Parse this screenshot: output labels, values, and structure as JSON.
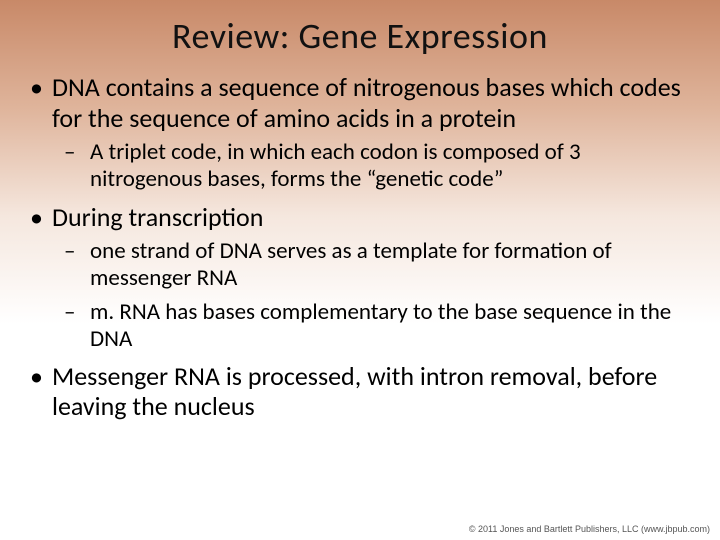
{
  "background": {
    "gradient_stops": [
      "#c88968",
      "#dfb49b",
      "#f5e7de",
      "#ffffff"
    ],
    "gradient_direction": "top-to-bottom"
  },
  "title": {
    "text": "Review:  Gene Expression",
    "fontsize": 36,
    "color": "#111111",
    "align": "center"
  },
  "bullets": [
    {
      "text": "DNA contains a sequence of nitrogenous bases which codes for the sequence of amino acids in a protein",
      "fontsize": 26,
      "sub": [
        {
          "text": "A triplet code, in which each codon is composed of 3 nitrogenous bases, forms the “genetic code”",
          "fontsize": 23
        }
      ]
    },
    {
      "text": "During transcription",
      "fontsize": 26,
      "sub": [
        {
          "text": "one strand of DNA serves as a template for formation of messenger RNA",
          "fontsize": 23
        },
        {
          "text": "m. RNA has bases complementary to the base sequence in the DNA",
          "fontsize": 23
        }
      ]
    },
    {
      "text": "Messenger RNA is processed, with intron removal, before leaving the nucleus",
      "fontsize": 26,
      "sub": []
    }
  ],
  "copyright": "© 2011 Jones and Bartlett Publishers, LLC (www.jbpub.com)",
  "text_color": "#000000",
  "bullet_marker_level1": "•",
  "bullet_marker_level2": "–"
}
